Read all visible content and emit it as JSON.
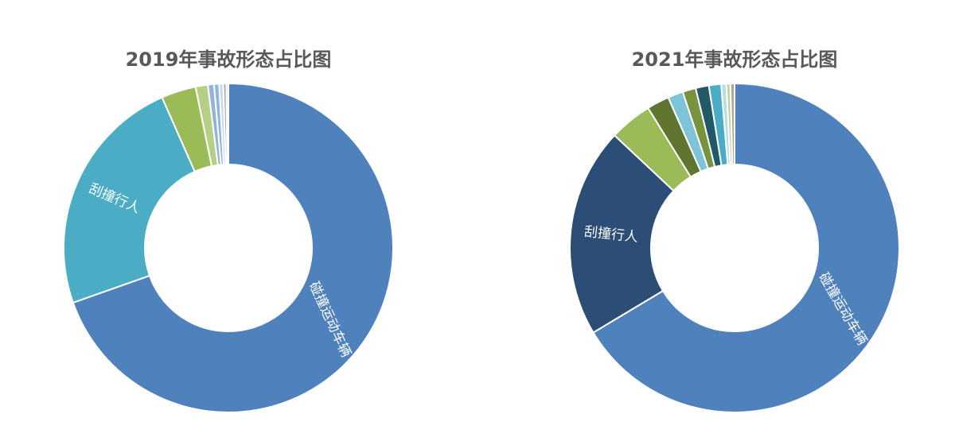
{
  "chart_data": [
    {
      "type": "pie",
      "donut": true,
      "title": "2019年事故形态占比图",
      "categories": [
        "碰撞运动车辆",
        "刮撞行人",
        null,
        null,
        null,
        null,
        null,
        null,
        null
      ],
      "values": [
        69.6,
        23.8,
        3.4,
        1.2,
        0.6,
        0.5,
        0.4,
        0.3,
        0.2
      ],
      "colors": [
        "#4f81bd",
        "#4bacc6",
        "#9bbb59",
        "#b5cf85",
        "#95b3d7",
        "#8eb4e3",
        "#c6d9f1",
        "#a5a5a5",
        "#d9d9d9"
      ]
    },
    {
      "type": "pie",
      "donut": true,
      "title": "2021年事故形态占比图",
      "categories": [
        "碰撞运动车辆",
        "刮撞行人",
        null,
        null,
        null,
        null,
        null,
        null,
        null,
        null,
        null
      ],
      "values": [
        66.4,
        20.6,
        4.2,
        2.2,
        1.5,
        1.3,
        1.3,
        1.2,
        0.5,
        0.4,
        0.4
      ],
      "colors": [
        "#4f81bd",
        "#2c4d75",
        "#9bbb59",
        "#5f7530",
        "#7ec4d9",
        "#77933c",
        "#215968",
        "#4bacc6",
        "#b7dee8",
        "#c3d69b",
        "#a5a5a5"
      ]
    }
  ]
}
